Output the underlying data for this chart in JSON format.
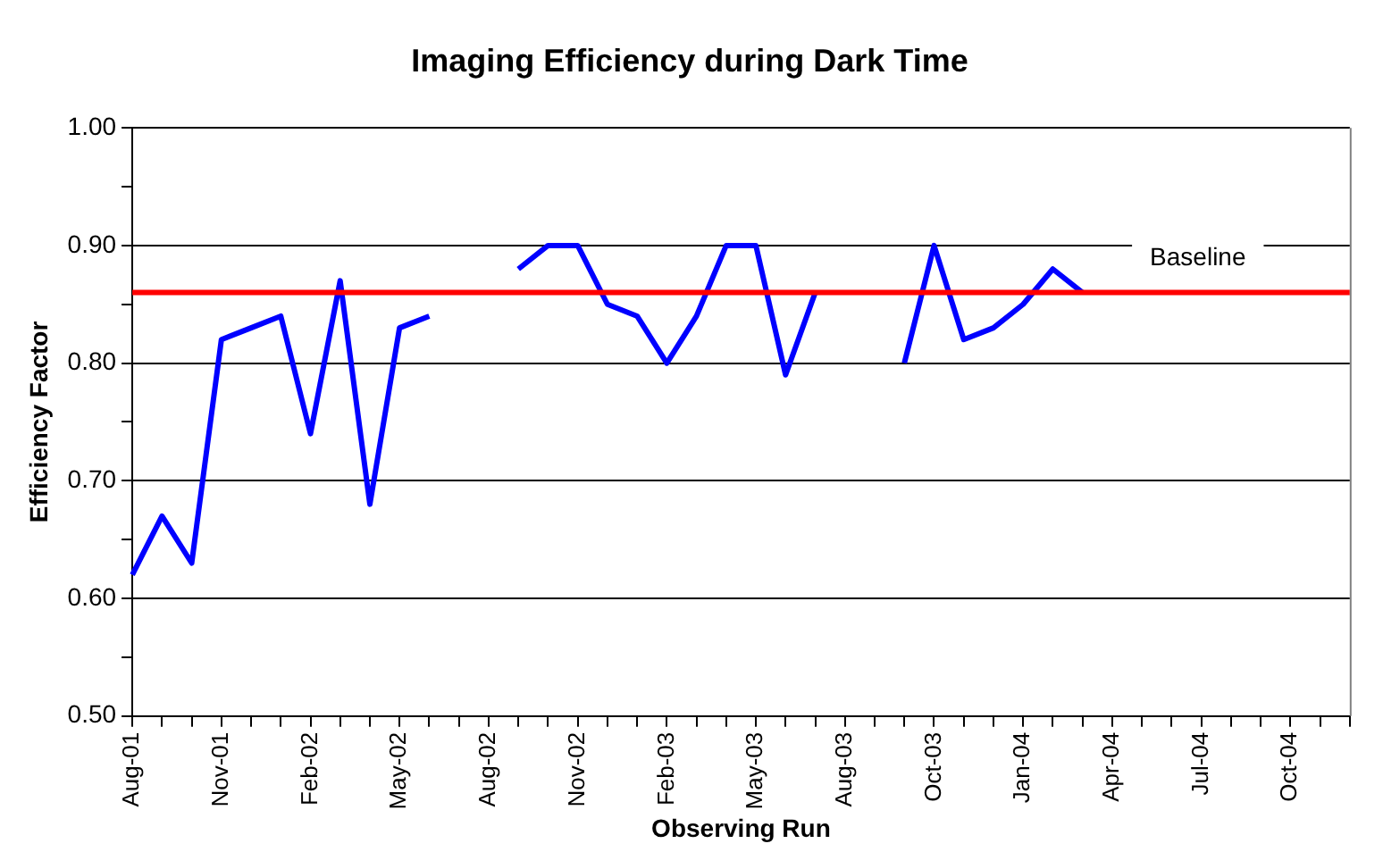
{
  "chart_data": {
    "type": "line",
    "title": "Imaging Efficiency during Dark Time",
    "xlabel": "Observing Run",
    "ylabel": "Efficiency Factor",
    "categories": [
      "Aug-01",
      null,
      null,
      "Nov-01",
      null,
      null,
      "Feb-02",
      null,
      null,
      "May-02",
      null,
      null,
      "Aug-02",
      null,
      null,
      "Nov-02",
      null,
      null,
      "Feb-03",
      null,
      null,
      "May-03",
      null,
      null,
      "Aug-03",
      null,
      null,
      "Oct-03",
      null,
      null,
      "Jan-04",
      null,
      null,
      "Apr-04",
      null,
      null,
      "Jul-04",
      null,
      null,
      "Oct-04",
      null,
      null
    ],
    "series": [
      {
        "color": "#0000ff",
        "values": [
          0.62,
          0.67,
          0.63,
          0.82,
          0.83,
          0.84,
          0.74,
          0.87,
          0.68,
          0.83,
          0.84,
          null,
          null,
          0.88,
          0.9,
          0.9,
          0.85,
          0.84,
          0.8,
          0.84,
          0.9,
          0.9,
          0.79,
          0.86,
          null,
          null,
          0.8,
          0.9,
          0.82,
          0.83,
          0.85,
          0.88,
          0.86,
          null,
          null,
          null,
          null,
          null,
          null,
          null,
          null,
          null
        ]
      }
    ],
    "ylim": [
      0.5,
      1.0
    ],
    "yticks": [
      {
        "value": 0.5,
        "label": "0.50"
      },
      {
        "value": 0.55,
        "label": null
      },
      {
        "value": 0.6,
        "label": "0.60"
      },
      {
        "value": 0.65,
        "label": null
      },
      {
        "value": 0.7,
        "label": "0.70"
      },
      {
        "value": 0.75,
        "label": null
      },
      {
        "value": 0.8,
        "label": "0.80"
      },
      {
        "value": 0.85,
        "label": null
      },
      {
        "value": 0.9,
        "label": "0.90"
      },
      {
        "value": 0.95,
        "label": null
      },
      {
        "value": 1.0,
        "label": "1.00"
      }
    ],
    "ref_lines": [
      {
        "axis": "y",
        "value": 0.86,
        "label": "Baseline",
        "color": "#ff0000"
      }
    ],
    "grid": "y",
    "legend": false,
    "marker": "none",
    "line_style": "solid"
  }
}
